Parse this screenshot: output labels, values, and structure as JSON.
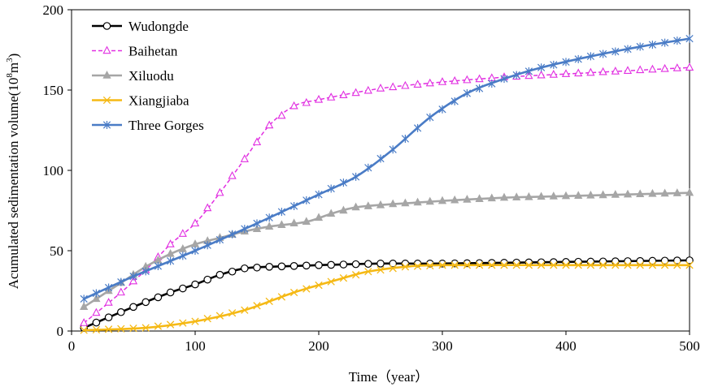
{
  "chart_data": {
    "type": "line",
    "title": "",
    "xlabel": "Time（year）",
    "ylabel_main": "Acumulated  sedimentation  volume(10",
    "ylabel_sup": "8",
    "ylabel_unit": "m",
    "ylabel_sup2": "3",
    "ylabel_close": ")",
    "xlim": [
      0,
      500
    ],
    "ylim": [
      0,
      200
    ],
    "x_ticks": [
      0,
      100,
      200,
      300,
      400,
      500
    ],
    "y_ticks": [
      0,
      50,
      100,
      150,
      200
    ],
    "x_tick_labels": [
      "0",
      "100",
      "200",
      "300",
      "400",
      "500"
    ],
    "y_tick_labels": [
      "0",
      "50",
      "100",
      "150",
      "200"
    ],
    "grid": false,
    "legend_position": "top-left",
    "series": [
      {
        "name": "Wudongde",
        "color": "#000000",
        "marker": "circle",
        "dashed": false,
        "points": [
          [
            10,
            2
          ],
          [
            50,
            15
          ],
          [
            80,
            24
          ],
          [
            100,
            29
          ],
          [
            120,
            35
          ],
          [
            140,
            39
          ],
          [
            160,
            40
          ],
          [
            200,
            41
          ],
          [
            250,
            42
          ],
          [
            300,
            42
          ],
          [
            400,
            43
          ],
          [
            500,
            44
          ]
        ]
      },
      {
        "name": "Baihetan",
        "color": "#e12fe1",
        "marker": "triangle-open",
        "dashed": true,
        "points": [
          [
            10,
            5
          ],
          [
            40,
            24
          ],
          [
            60,
            38
          ],
          [
            80,
            54
          ],
          [
            100,
            67
          ],
          [
            120,
            86
          ],
          [
            140,
            107
          ],
          [
            160,
            128
          ],
          [
            180,
            140
          ],
          [
            200,
            144
          ],
          [
            250,
            151
          ],
          [
            300,
            155
          ],
          [
            350,
            158
          ],
          [
            400,
            160
          ],
          [
            450,
            162
          ],
          [
            500,
            164
          ]
        ]
      },
      {
        "name": "Xiluodu",
        "color": "#a6a6a6",
        "marker": "triangle-filled",
        "dashed": false,
        "points": [
          [
            10,
            15
          ],
          [
            40,
            30
          ],
          [
            60,
            40
          ],
          [
            80,
            48
          ],
          [
            100,
            54
          ],
          [
            120,
            58
          ],
          [
            140,
            62
          ],
          [
            160,
            65
          ],
          [
            190,
            68
          ],
          [
            210,
            73
          ],
          [
            230,
            77
          ],
          [
            260,
            79
          ],
          [
            300,
            81
          ],
          [
            350,
            83
          ],
          [
            400,
            84
          ],
          [
            450,
            85
          ],
          [
            500,
            86
          ]
        ]
      },
      {
        "name": "Xiangjiaba",
        "color": "#f5b915",
        "marker": "x",
        "dashed": false,
        "points": [
          [
            10,
            0.5
          ],
          [
            60,
            2
          ],
          [
            100,
            6
          ],
          [
            140,
            13
          ],
          [
            180,
            24
          ],
          [
            220,
            33
          ],
          [
            240,
            37
          ],
          [
            270,
            40
          ],
          [
            300,
            41
          ],
          [
            400,
            41
          ],
          [
            500,
            41
          ]
        ]
      },
      {
        "name": "Three Gorges",
        "color": "#4a7cc6",
        "marker": "star",
        "dashed": false,
        "points": [
          [
            10,
            20
          ],
          [
            50,
            34
          ],
          [
            100,
            50
          ],
          [
            150,
            67
          ],
          [
            200,
            85
          ],
          [
            230,
            96
          ],
          [
            260,
            113
          ],
          [
            290,
            133
          ],
          [
            320,
            148
          ],
          [
            350,
            157
          ],
          [
            380,
            164
          ],
          [
            420,
            171
          ],
          [
            460,
            177
          ],
          [
            500,
            182
          ]
        ]
      }
    ]
  }
}
